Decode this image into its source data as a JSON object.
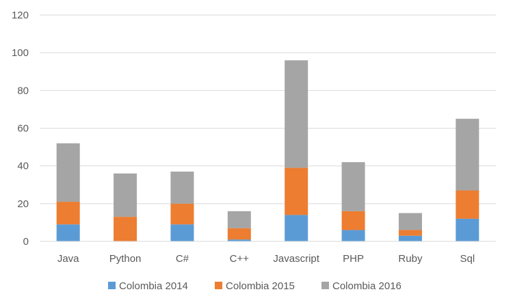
{
  "chart_data": {
    "type": "bar",
    "stacked": true,
    "categories": [
      "Java",
      "Python",
      "C#",
      "C++",
      "Javascript",
      "PHP",
      "Ruby",
      "Sql"
    ],
    "series": [
      {
        "name": "Colombia 2014",
        "color": "#5B9BD5",
        "values": [
          9,
          0,
          9,
          1,
          14,
          6,
          3,
          12
        ]
      },
      {
        "name": "Colombia 2015",
        "color": "#ED7D31",
        "values": [
          12,
          13,
          11,
          6,
          25,
          10,
          3,
          15
        ]
      },
      {
        "name": "Colombia 2016",
        "color": "#A5A5A5",
        "values": [
          31,
          23,
          17,
          9,
          57,
          26,
          9,
          38
        ]
      }
    ],
    "ylim": [
      0,
      120
    ],
    "yticks": [
      0,
      20,
      40,
      60,
      80,
      100,
      120
    ],
    "title": "",
    "xlabel": "",
    "ylabel": "",
    "grid": true,
    "legend_position": "bottom"
  }
}
